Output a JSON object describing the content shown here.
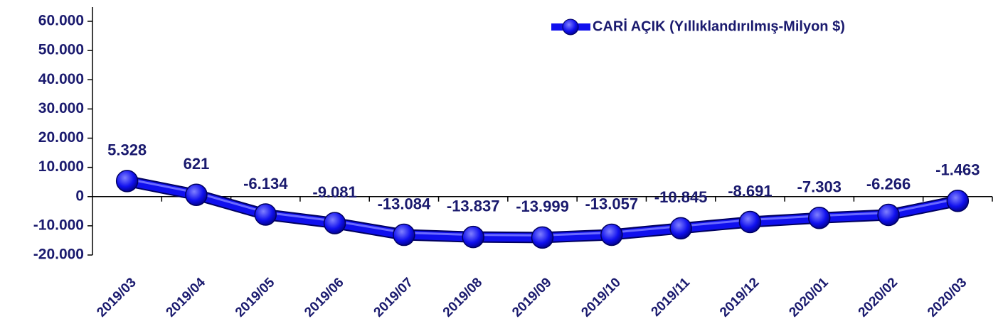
{
  "chart_data": {
    "type": "line",
    "categories": [
      "2019/03",
      "2019/04",
      "2019/05",
      "2019/06",
      "2019/07",
      "2019/08",
      "2019/09",
      "2019/10",
      "2019/11",
      "2019/12",
      "2020/01",
      "2020/02",
      "2020/03"
    ],
    "series": [
      {
        "name": "CARİ AÇIK (Yıllıklandırılmış-Milyon $)",
        "color": "#1010ee",
        "values": [
          5328,
          621,
          -6134,
          -9081,
          -13084,
          -13837,
          -13999,
          -13057,
          -10845,
          -8691,
          -7303,
          -6266,
          -1463
        ],
        "value_labels": [
          "5.328",
          "621",
          "-6.134",
          "-9.081",
          "-13.084",
          "-13.837",
          "-13.999",
          "-13.057",
          "-10.845",
          "-8.691",
          "-7.303",
          "-6.266",
          "-1.463"
        ]
      }
    ],
    "ylim": [
      -20000,
      60000
    ],
    "yticks": [
      {
        "value": -20000,
        "label": "-20.000"
      },
      {
        "value": -10000,
        "label": "-10.000"
      },
      0,
      {
        "value": 10000,
        "label": "10.000"
      },
      {
        "value": 20000,
        "label": "20.000"
      },
      {
        "value": 30000,
        "label": "30.000"
      },
      {
        "value": 40000,
        "label": "40.000"
      },
      {
        "value": 50000,
        "label": "50.000"
      },
      {
        "value": 60000,
        "label": "60.000"
      }
    ],
    "legend": "top-right"
  }
}
